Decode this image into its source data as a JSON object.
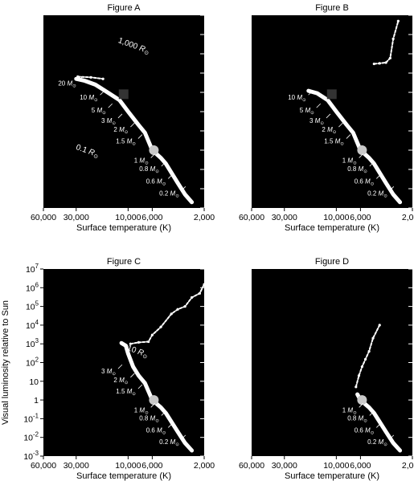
{
  "chart_data": [
    {
      "type": "scatter",
      "title": "Figure A",
      "xlabel": "Surface temperature (K)",
      "ylabel": "",
      "x_scale": "log-reversed",
      "y_scale": "log",
      "xlim": [
        60000,
        2000
      ],
      "ylim": [
        0.001,
        10000000
      ],
      "x_ticks": [
        "60,000",
        "30,000",
        "10,000",
        "6,000",
        "2,000"
      ],
      "y_ticks": [],
      "series": [
        {
          "points": [
            [
              30000,
              5000
            ],
            [
              25000,
              4000
            ],
            [
              20000,
              2500
            ],
            [
              15000,
              900
            ],
            [
              12000,
              400
            ],
            [
              10000,
              100
            ],
            [
              8000,
              20
            ],
            [
              7000,
              8
            ],
            [
              6000,
              1
            ],
            [
              5000,
              0.4
            ],
            [
              4500,
              0.2
            ],
            [
              3500,
              0.02
            ],
            [
              3000,
              0.005
            ],
            [
              2600,
              0.002
            ]
          ],
          "extra": [
            [
              29000,
              6500
            ],
            [
              22000,
              6000
            ],
            [
              17000,
              5000
            ]
          ]
        }
      ],
      "sun": [
        5800,
        1
      ],
      "square": [
        11000,
        800
      ],
      "mass_labels": [
        {
          "text": "20",
          "at": [
            30000,
            3000
          ]
        },
        {
          "text": "10",
          "at": [
            19000,
            550
          ]
        },
        {
          "text": "5",
          "at": [
            16000,
            120
          ]
        },
        {
          "text": "3",
          "at": [
            13000,
            35
          ]
        },
        {
          "text": "2",
          "at": [
            10000,
            12
          ]
        },
        {
          "text": "1.5",
          "at": [
            8500,
            3
          ]
        },
        {
          "text": "1",
          "at": [
            6500,
            0.3
          ]
        },
        {
          "text": "0.8",
          "at": [
            5200,
            0.11
          ]
        },
        {
          "text": "0.6",
          "at": [
            4500,
            0.025
          ]
        },
        {
          "text": "0.2",
          "at": [
            3400,
            0.006
          ]
        }
      ],
      "mass_unit": "M",
      "mass_unit_sub": "⊙",
      "radius_labels": [
        {
          "value": "1,000",
          "unit": "R",
          "sub": "⊙",
          "at": [
            9000,
            200000
          ]
        },
        {
          "value": "0.1",
          "unit": "R",
          "sub": "⊙",
          "at": [
            24000,
            0.7
          ]
        }
      ]
    },
    {
      "type": "scatter",
      "title": "Figure B",
      "xlabel": "Surface temperature (K)",
      "ylabel": "",
      "x_scale": "log-reversed",
      "y_scale": "log",
      "xlim": [
        60000,
        2000
      ],
      "ylim": [
        0.001,
        10000000
      ],
      "x_ticks": [
        "60,000",
        "30,000",
        "10,000",
        "6,000",
        "2,000"
      ],
      "y_ticks": [],
      "series": [
        {
          "points": [
            [
              18000,
              1200
            ],
            [
              15000,
              900
            ],
            [
              12000,
              400
            ],
            [
              10000,
              100
            ],
            [
              8000,
              20
            ],
            [
              7000,
              8
            ],
            [
              6000,
              1
            ],
            [
              5000,
              0.4
            ],
            [
              4500,
              0.2
            ],
            [
              3500,
              0.02
            ],
            [
              3000,
              0.005
            ],
            [
              2600,
              0.002
            ]
          ],
          "extra": [
            [
              4500,
              30000
            ],
            [
              4000,
              32000
            ],
            [
              3500,
              35000
            ],
            [
              3200,
              60000
            ],
            [
              3000,
              600000
            ],
            [
              2700,
              5000000
            ]
          ]
        }
      ],
      "sun": [
        5800,
        1
      ],
      "square": [
        11000,
        800
      ],
      "mass_labels": [
        {
          "text": "10",
          "at": [
            19000,
            550
          ]
        },
        {
          "text": "5",
          "at": [
            16000,
            120
          ]
        },
        {
          "text": "3",
          "at": [
            13000,
            35
          ]
        },
        {
          "text": "2",
          "at": [
            10000,
            12
          ]
        },
        {
          "text": "1.5",
          "at": [
            8500,
            3
          ]
        },
        {
          "text": "1",
          "at": [
            6500,
            0.3
          ]
        },
        {
          "text": "0.8",
          "at": [
            5200,
            0.11
          ]
        },
        {
          "text": "0.6",
          "at": [
            4500,
            0.025
          ]
        },
        {
          "text": "0.2",
          "at": [
            3400,
            0.006
          ]
        }
      ],
      "mass_unit": "M",
      "mass_unit_sub": "⊙",
      "radius_labels": []
    },
    {
      "type": "scatter",
      "title": "Figure C",
      "xlabel": "Surface temperature (K)",
      "ylabel": "Visual luminosity relative to Sun",
      "x_scale": "log-reversed",
      "y_scale": "log",
      "xlim": [
        60000,
        2000
      ],
      "ylim": [
        0.001,
        10000000
      ],
      "x_ticks": [
        "60,000",
        "30,000",
        "10,000",
        "6,000",
        "2,000"
      ],
      "y_ticks": [
        "10^7",
        "10^6",
        "10^5",
        "10^4",
        "10^3",
        "10^2",
        "10",
        "1",
        "10^-1",
        "10^-2",
        "10^-3"
      ],
      "series": [
        {
          "points": [
            [
              11500,
              1100
            ],
            [
              10500,
              800
            ],
            [
              10000,
              300
            ],
            [
              9000,
              60
            ],
            [
              8000,
              20
            ],
            [
              7000,
              8
            ],
            [
              6000,
              1
            ],
            [
              5000,
              0.4
            ],
            [
              4500,
              0.2
            ],
            [
              3500,
              0.02
            ],
            [
              3000,
              0.005
            ],
            [
              2600,
              0.002
            ]
          ],
          "extra": [
            [
              9500,
              1000
            ],
            [
              8000,
              1200
            ],
            [
              6500,
              1300
            ],
            [
              6000,
              3000
            ],
            [
              5000,
              8000
            ],
            [
              4000,
              40000
            ],
            [
              3500,
              70000
            ],
            [
              3000,
              100000
            ],
            [
              2600,
              300000
            ],
            [
              2200,
              500000
            ],
            [
              2000,
              1500000
            ]
          ]
        }
      ],
      "sun": [
        5800,
        1
      ],
      "square": null,
      "mass_labels": [
        {
          "text": "3",
          "at": [
            13000,
            35
          ]
        },
        {
          "text": "2",
          "at": [
            10000,
            12
          ]
        },
        {
          "text": "1.5",
          "at": [
            8500,
            3
          ]
        },
        {
          "text": "1",
          "at": [
            6500,
            0.3
          ]
        },
        {
          "text": "0.8",
          "at": [
            5200,
            0.11
          ]
        },
        {
          "text": "0.6",
          "at": [
            4500,
            0.025
          ]
        },
        {
          "text": "0.2",
          "at": [
            3400,
            0.006
          ]
        }
      ],
      "mass_unit": "M",
      "mass_unit_sub": "⊙",
      "radius_labels": [
        {
          "value": "10",
          "unit": "R",
          "sub": "⊙",
          "at": [
            8300,
            300
          ]
        }
      ]
    },
    {
      "type": "scatter",
      "title": "Figure D",
      "xlabel": "Surface temperature (K)",
      "ylabel": "",
      "x_scale": "log-reversed",
      "y_scale": "log",
      "xlim": [
        60000,
        2000
      ],
      "ylim": [
        0.001,
        10000000
      ],
      "x_ticks": [
        "60,000",
        "30,000",
        "10,000",
        "6,000",
        "2,000"
      ],
      "y_ticks": [],
      "series": [
        {
          "points": [
            [
              6400,
              2
            ],
            [
              6000,
              1
            ],
            [
              5000,
              0.4
            ],
            [
              4500,
              0.2
            ],
            [
              3500,
              0.02
            ],
            [
              3000,
              0.005
            ],
            [
              2600,
              0.002
            ]
          ],
          "extra": [
            [
              6600,
              5
            ],
            [
              6200,
              20
            ],
            [
              5800,
              60
            ],
            [
              5400,
              150
            ],
            [
              5000,
              400
            ],
            [
              4600,
              2000
            ],
            [
              4000,
              10000
            ]
          ]
        }
      ],
      "sun": [
        5800,
        1
      ],
      "square": null,
      "mass_labels": [
        {
          "text": "1",
          "at": [
            6500,
            0.3
          ]
        },
        {
          "text": "0.8",
          "at": [
            5200,
            0.11
          ]
        },
        {
          "text": "0.6",
          "at": [
            4500,
            0.025
          ]
        },
        {
          "text": "0.2",
          "at": [
            3400,
            0.006
          ]
        }
      ],
      "mass_unit": "M",
      "mass_unit_sub": "⊙",
      "radius_labels": []
    }
  ]
}
